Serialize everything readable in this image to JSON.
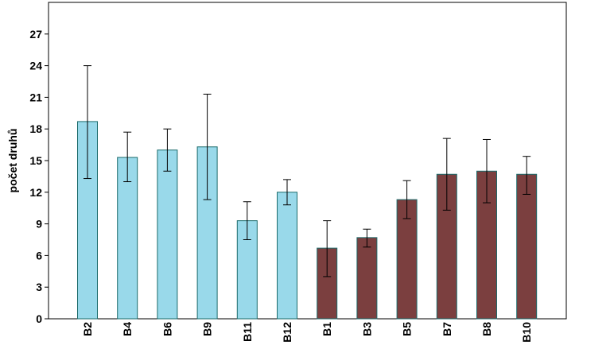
{
  "chart_data": {
    "type": "bar",
    "ylabel": "počet druhů",
    "xlabel": "",
    "title": "",
    "ylim": [
      0,
      30
    ],
    "yticks": [
      0,
      3,
      6,
      9,
      12,
      15,
      18,
      21,
      24,
      27
    ],
    "grid": false,
    "legend": "none",
    "categories": [
      "B2",
      "B4",
      "B6",
      "B9",
      "B11",
      "B12",
      "B1",
      "B3",
      "B5",
      "B7",
      "B8",
      "B10"
    ],
    "values": [
      18.7,
      15.3,
      16.0,
      16.3,
      9.3,
      12.0,
      6.7,
      7.7,
      11.3,
      13.7,
      14.0,
      13.7
    ],
    "error_low": [
      13.3,
      13.0,
      14.0,
      11.3,
      7.5,
      10.8,
      4.0,
      6.8,
      9.5,
      10.3,
      11.0,
      11.8
    ],
    "error_high": [
      24.0,
      17.7,
      18.0,
      21.3,
      11.1,
      13.2,
      9.3,
      8.5,
      13.1,
      17.1,
      17.0,
      15.4
    ],
    "bar_colors": [
      "#99d9ea",
      "#99d9ea",
      "#99d9ea",
      "#99d9ea",
      "#99d9ea",
      "#99d9ea",
      "#7b3f3f",
      "#7b3f3f",
      "#7b3f3f",
      "#7b3f3f",
      "#7b3f3f",
      "#7b3f3f"
    ],
    "bar_edge_color": "#1b6b6b"
  }
}
